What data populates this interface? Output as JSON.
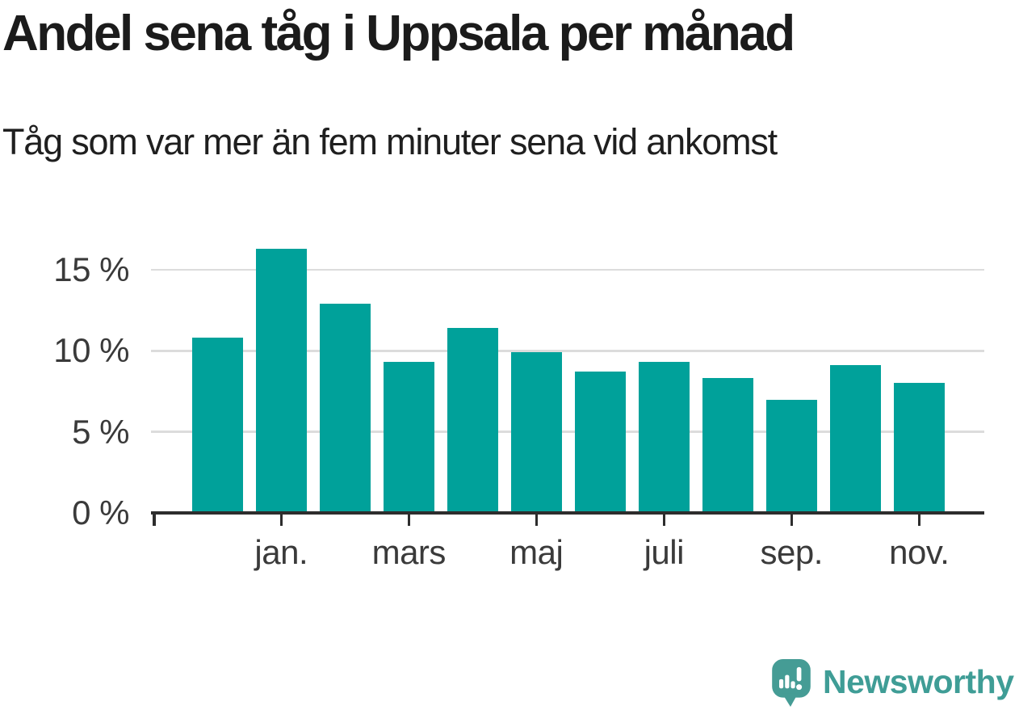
{
  "header": {
    "title": "Andel sena tåg i Uppsala per månad",
    "subtitle": "Tåg som var mer än fem minuter sena vid ankomst"
  },
  "chart_data": {
    "type": "bar",
    "title": "Andel sena tåg i Uppsala per månad",
    "subtitle": "Tåg som var mer än fem minuter sena vid ankomst",
    "unit": "percent share of late trains",
    "values": [
      10.8,
      16.3,
      12.9,
      9.3,
      11.4,
      9.9,
      8.7,
      9.3,
      8.3,
      7.0,
      9.1,
      8.0
    ],
    "bar_count": 12,
    "x_tick_labels": [
      "jan.",
      "mars",
      "maj",
      "juli",
      "sep.",
      "nov."
    ],
    "x_tick_bar_indices": [
      1,
      3,
      5,
      7,
      9,
      11
    ],
    "y_tick_labels": [
      "0 %",
      "5 %",
      "10 %",
      "15 %"
    ],
    "y_tick_values": [
      0,
      5,
      10,
      15
    ],
    "ylim": [
      0,
      17
    ],
    "grid": "horizontal-gridlines",
    "legend": "none",
    "bar_color": "#00a19a"
  },
  "colors": {
    "bar": "#00a19a",
    "gridline": "#dcdcdc",
    "axis_line": "#2d2d2d",
    "axis_label": "#3a3a3a",
    "title_text": "#1b1b1b",
    "logo_teal": "#3f9d96",
    "background": "#ffffff"
  },
  "footer": {
    "logo_text": "Newsworthy",
    "logo_icon": "newsworthy-speech-bubble-bar-chart-icon"
  }
}
